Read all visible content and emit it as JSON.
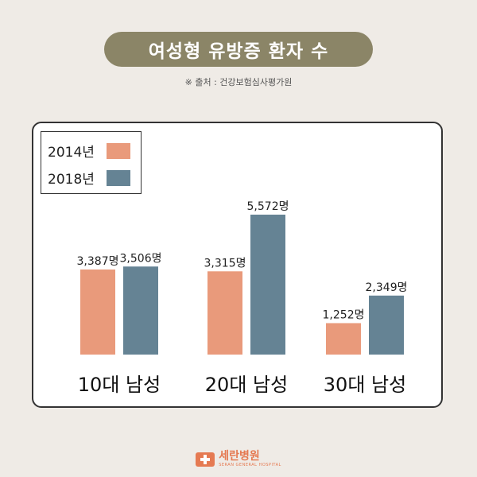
{
  "header": {
    "title": "여성형 유방증 환자 수",
    "source": "※ 출처 : 건강보험심사평가원"
  },
  "chart_data": {
    "type": "bar",
    "title": "여성형 유방증 환자 수",
    "categories": [
      "10대 남성",
      "20대 남성",
      "30대 남성"
    ],
    "series": [
      {
        "name": "2014년",
        "values": [
          3387,
          3315,
          1252
        ],
        "labels": [
          "3,387명",
          "3,315명",
          "1,252명"
        ],
        "color": "#e99a7b"
      },
      {
        "name": "2018년",
        "values": [
          3506,
          5572,
          2349
        ],
        "labels": [
          "3,506명",
          "5,572명",
          "2,349명"
        ],
        "color": "#658394"
      }
    ],
    "ylim": [
      0,
      5700
    ],
    "grid": false,
    "legend_position": "top-left"
  },
  "footer": {
    "logo_icon": "hospital-cross-icon",
    "hospital_name": "세란병원",
    "hospital_english": "SERAN GENERAL HOSPITAL",
    "brand_color": "#e57a52"
  },
  "colors": {
    "background": "#efebe6",
    "title_pill": "#8b8567"
  }
}
